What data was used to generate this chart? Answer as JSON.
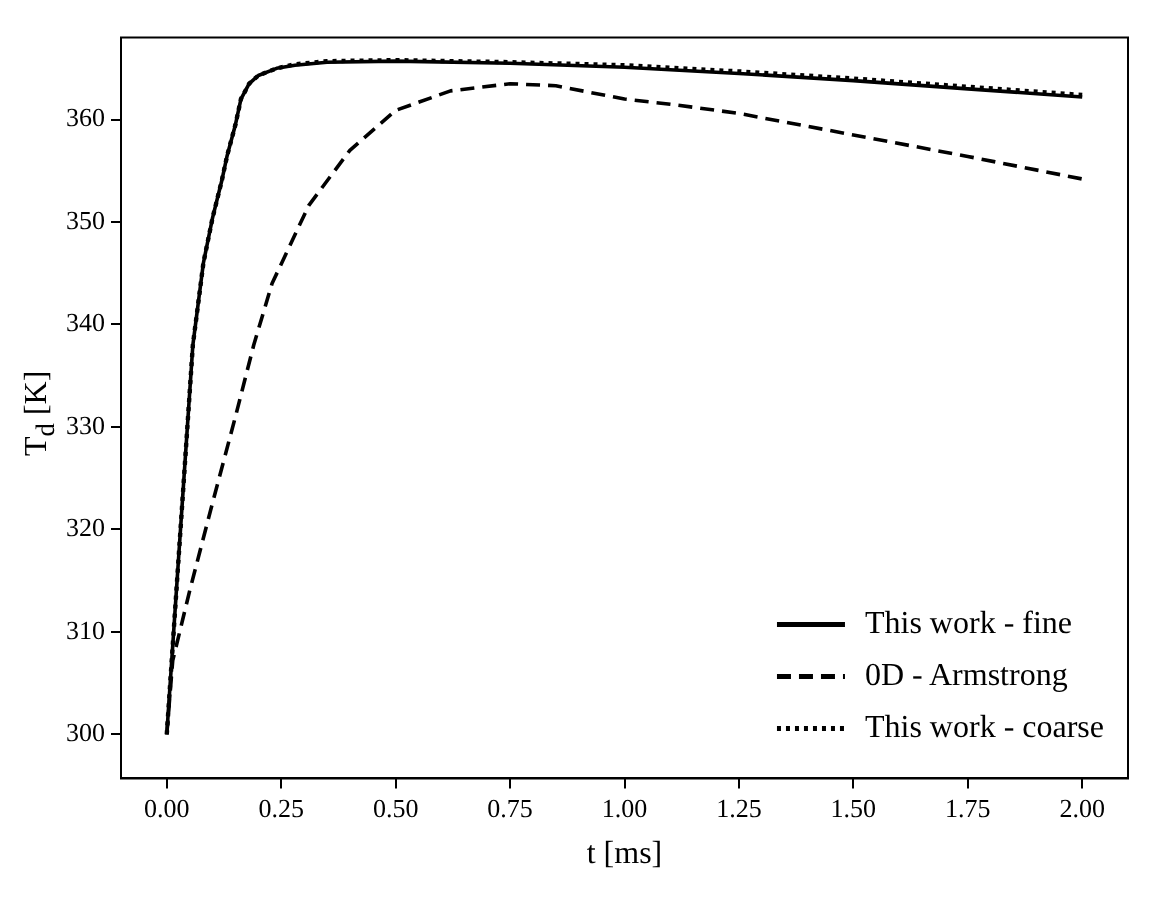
{
  "chart_data": {
    "type": "line",
    "xlabel": "t [ms]",
    "ylabel": "T$_{d}$ [K]",
    "xlim": [
      -0.1,
      2.1
    ],
    "ylim": [
      295.7,
      368
    ],
    "xticks": [
      {
        "value": 0,
        "label": "0.00"
      },
      {
        "value": 0.25,
        "label": "0.25"
      },
      {
        "value": 0.5,
        "label": "0.50"
      },
      {
        "value": 0.75,
        "label": "0.75"
      },
      {
        "value": 1,
        "label": "1.00"
      },
      {
        "value": 1.25,
        "label": "1.25"
      },
      {
        "value": 1.5,
        "label": "1.50"
      },
      {
        "value": 1.75,
        "label": "1.75"
      },
      {
        "value": 2,
        "label": "2.00"
      }
    ],
    "yticks": [
      300,
      310,
      320,
      330,
      340,
      350,
      360
    ],
    "grid": false,
    "legend": "bottom right",
    "marker": "none",
    "series": [
      {
        "name": "This work - fine",
        "color": "#000000",
        "line_style": "solid",
        "x": [
          0,
          0.03,
          0.057,
          0.08,
          0.1,
          0.12,
          0.132,
          0.15,
          0.162,
          0.18,
          0.2,
          0.24,
          0.28,
          0.35,
          0.5,
          0.75,
          1.0,
          1.25,
          1.5,
          1.75,
          2.0
        ],
        "values": [
          300,
          320,
          338,
          346,
          350.4,
          354,
          356.5,
          359.5,
          362,
          363.5,
          364.3,
          365,
          365.3,
          365.6,
          365.7,
          365.5,
          365.1,
          364.5,
          363.8,
          363.0,
          362.2
        ]
      },
      {
        "name": "0D - Armstrong",
        "color": "#000000",
        "line_style": "dashed",
        "x": [
          0,
          0.013,
          0.05,
          0.1,
          0.15,
          0.19,
          0.23,
          0.31,
          0.4,
          0.5,
          0.62,
          0.75,
          0.85,
          1.0,
          1.1,
          1.25,
          1.5,
          1.75,
          2.0
        ],
        "values": [
          300,
          307.2,
          314,
          322.6,
          331,
          338,
          344,
          351.6,
          357,
          360.9,
          362.8,
          363.5,
          363.3,
          362,
          361.5,
          360.6,
          358.5,
          356.4,
          354.2
        ]
      },
      {
        "name": "This work - coarse",
        "color": "#000000",
        "line_style": "dotted",
        "x": [
          0,
          0.03,
          0.057,
          0.08,
          0.1,
          0.12,
          0.132,
          0.15,
          0.162,
          0.18,
          0.2,
          0.24,
          0.28,
          0.35,
          0.5,
          0.75,
          1.0,
          1.25,
          1.5,
          1.75,
          2.0
        ],
        "values": [
          300,
          320,
          338,
          346,
          350.4,
          354,
          356.5,
          359.5,
          362,
          363.5,
          364.3,
          365,
          365.4,
          365.7,
          365.8,
          365.6,
          365.3,
          364.7,
          364.0,
          363.2,
          362.4
        ]
      }
    ]
  }
}
